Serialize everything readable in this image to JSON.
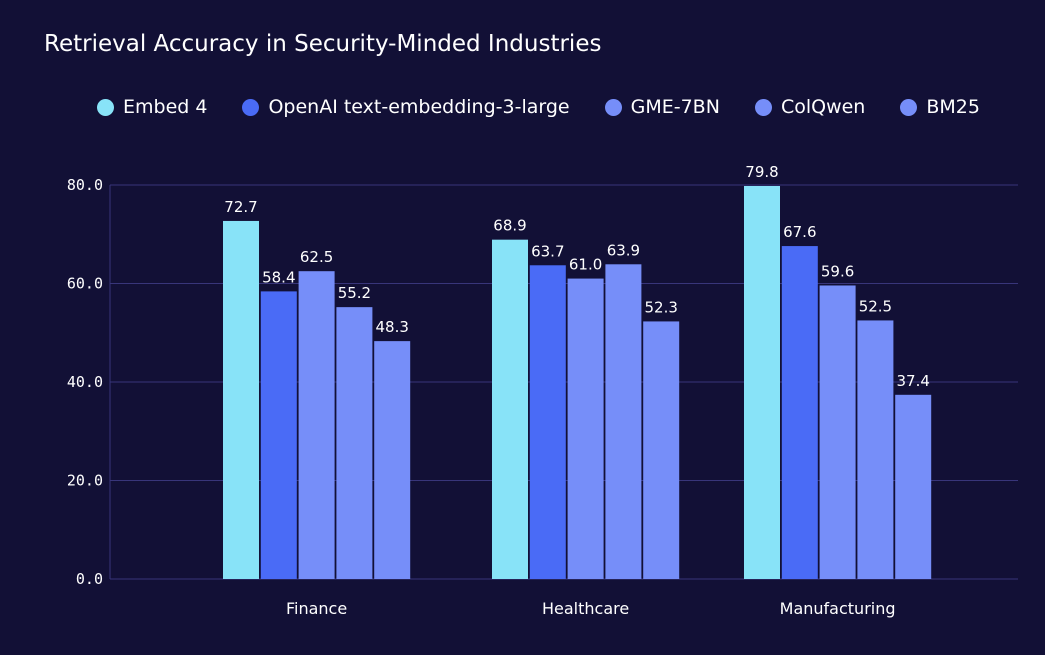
{
  "chart_data": {
    "type": "bar",
    "title": "Retrieval Accuracy in Security-Minded Industries",
    "xlabel": "",
    "ylabel": "",
    "categories": [
      "Finance",
      "Healthcare",
      "Manufacturing"
    ],
    "ylim": [
      0,
      80
    ],
    "yticks": [
      "0.0",
      "20.0",
      "40.0",
      "60.0",
      "80.0"
    ],
    "grid": true,
    "legend_position": "top",
    "series": [
      {
        "name": "Embed 4",
        "color": "#88e3f8",
        "values": [
          72.7,
          68.9,
          79.8
        ],
        "labels": [
          "72.7",
          "68.9",
          "79.8"
        ]
      },
      {
        "name": "OpenAI text-embedding-3-large",
        "color": "#4a6bf6",
        "values": [
          58.4,
          63.7,
          67.6
        ],
        "labels": [
          "58.4",
          "63.7",
          "67.6"
        ]
      },
      {
        "name": "GME-7BN",
        "color": "#768ef9",
        "values": [
          62.5,
          61.0,
          59.6
        ],
        "labels": [
          "62.5",
          "61.0",
          "59.6"
        ]
      },
      {
        "name": "ColQwen",
        "color": "#768ef9",
        "values": [
          55.2,
          63.9,
          52.5
        ],
        "labels": [
          "55.2",
          "63.9",
          "52.5"
        ]
      },
      {
        "name": "BM25",
        "color": "#768ef9",
        "values": [
          48.3,
          52.3,
          37.4
        ],
        "labels": [
          "48.3",
          "52.3",
          "37.4"
        ]
      }
    ]
  },
  "colors": {
    "background": "#121036",
    "grid": "#38357a",
    "text": "#ffffff"
  }
}
